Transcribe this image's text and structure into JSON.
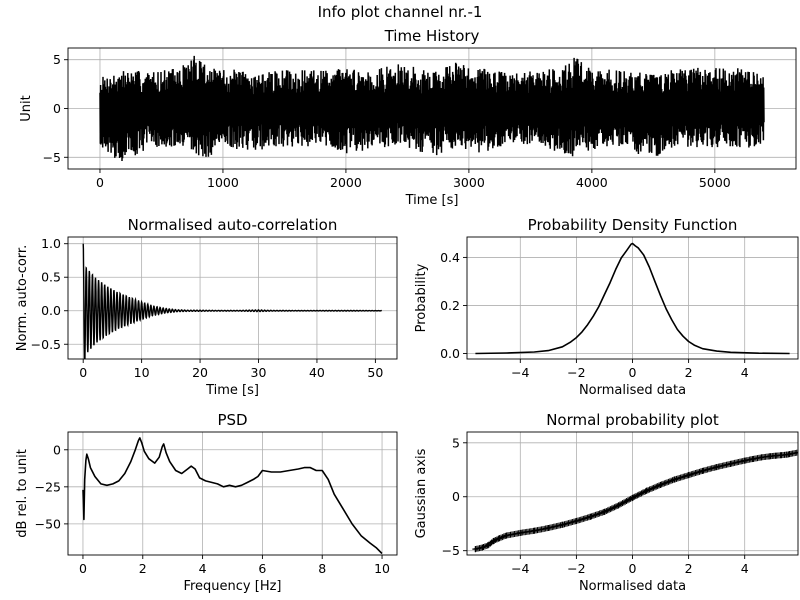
{
  "figure": {
    "suptitle": "Info plot channel nr.-1"
  },
  "chart_data": [
    {
      "id": "time-history",
      "type": "line",
      "title": "Time History",
      "xlabel": "Time [s]",
      "ylabel": "Unit",
      "xlim": [
        -260,
        5660
      ],
      "ylim": [
        -6.2,
        6.2
      ],
      "xticks": [
        0,
        1000,
        2000,
        3000,
        4000,
        5000
      ],
      "yticks": [
        -5,
        0,
        5
      ],
      "grid": true,
      "color": "#000000",
      "signal": {
        "x_start": 0,
        "x_end": 5400,
        "envelope_max": [
          [
            0,
            3.2
          ],
          [
            200,
            4.0
          ],
          [
            420,
            3.8
          ],
          [
            650,
            4.2
          ],
          [
            800,
            5.9
          ],
          [
            900,
            4.1
          ],
          [
            1100,
            4.0
          ],
          [
            1300,
            3.6
          ],
          [
            1500,
            4.0
          ],
          [
            1700,
            3.9
          ],
          [
            1950,
            4.2
          ],
          [
            2200,
            4.0
          ],
          [
            2450,
            4.6
          ],
          [
            2700,
            3.8
          ],
          [
            2900,
            4.8
          ],
          [
            3100,
            4.2
          ],
          [
            3350,
            3.6
          ],
          [
            3600,
            4.0
          ],
          [
            3800,
            4.6
          ],
          [
            3850,
            5.6
          ],
          [
            4000,
            4.1
          ],
          [
            4300,
            3.9
          ],
          [
            4500,
            3.8
          ],
          [
            4800,
            4.1
          ],
          [
            5100,
            4.4
          ],
          [
            5300,
            3.8
          ],
          [
            5400,
            3.4
          ]
        ],
        "envelope_min": [
          [
            0,
            -3.8
          ],
          [
            170,
            -5.6
          ],
          [
            420,
            -3.9
          ],
          [
            700,
            -4.3
          ],
          [
            850,
            -5.2
          ],
          [
            1050,
            -4.1
          ],
          [
            1300,
            -4.3
          ],
          [
            1500,
            -4.0
          ],
          [
            1800,
            -3.9
          ],
          [
            2000,
            -4.6
          ],
          [
            2250,
            -4.1
          ],
          [
            2450,
            -3.7
          ],
          [
            2700,
            -5.0
          ],
          [
            2900,
            -4.0
          ],
          [
            3100,
            -4.6
          ],
          [
            3350,
            -3.8
          ],
          [
            3550,
            -4.1
          ],
          [
            3800,
            -5.1
          ],
          [
            4000,
            -4.2
          ],
          [
            4250,
            -3.8
          ],
          [
            4450,
            -5.3
          ],
          [
            4700,
            -4.0
          ],
          [
            5000,
            -4.1
          ],
          [
            5300,
            -4.0
          ],
          [
            5400,
            -3.5
          ]
        ]
      }
    },
    {
      "id": "autocorrelation",
      "type": "line",
      "title": "Normalised auto-correlation",
      "xlabel": "Time [s]",
      "ylabel": "Norm. auto-corr.",
      "xlim": [
        -2.6,
        53.7
      ],
      "ylim": [
        -0.72,
        1.1
      ],
      "xticks": [
        0,
        10,
        20,
        30,
        40,
        50
      ],
      "yticks": [
        -0.5,
        0.0,
        0.5,
        1.0
      ],
      "ytick_format": 1,
      "grid": true,
      "color": "#000000",
      "envelope": [
        [
          0,
          1.0
        ],
        [
          0.5,
          0.65
        ],
        [
          1,
          0.6
        ],
        [
          2,
          0.5
        ],
        [
          4,
          0.37
        ],
        [
          6,
          0.27
        ],
        [
          8,
          0.2
        ],
        [
          10,
          0.13
        ],
        [
          12,
          0.07
        ],
        [
          14,
          0.035
        ],
        [
          16,
          0.015
        ],
        [
          18,
          0.008
        ],
        [
          20,
          0.008
        ],
        [
          22,
          0.006
        ],
        [
          26,
          0.004
        ],
        [
          30,
          0.012
        ],
        [
          32,
          0.006
        ],
        [
          36,
          0.003
        ],
        [
          40,
          0.003
        ],
        [
          45,
          0.004
        ],
        [
          51,
          0.002
        ]
      ],
      "x_end": 51.1
    },
    {
      "id": "pdf",
      "type": "line",
      "title": "Probability Density Function",
      "xlabel": "Normalised data",
      "ylabel": "Probability",
      "xlim": [
        -5.9,
        5.9
      ],
      "ylim": [
        -0.023,
        0.485
      ],
      "xticks": [
        -4,
        -2,
        0,
        2,
        4
      ],
      "yticks": [
        0.0,
        0.2,
        0.4
      ],
      "ytick_format": 1,
      "grid": true,
      "color": "#000000",
      "x": [
        -5.6,
        -4.5,
        -3.5,
        -3.0,
        -2.5,
        -2.2,
        -2.0,
        -1.8,
        -1.6,
        -1.4,
        -1.2,
        -1.0,
        -0.8,
        -0.6,
        -0.4,
        -0.2,
        -0.05,
        0.0,
        0.1,
        0.2,
        0.4,
        0.6,
        0.8,
        1.0,
        1.2,
        1.4,
        1.6,
        1.8,
        2.0,
        2.2,
        2.5,
        3.0,
        3.5,
        4.5,
        5.6
      ],
      "y": [
        0.0,
        0.002,
        0.006,
        0.012,
        0.028,
        0.048,
        0.066,
        0.09,
        0.12,
        0.155,
        0.195,
        0.245,
        0.295,
        0.35,
        0.398,
        0.43,
        0.455,
        0.458,
        0.448,
        0.44,
        0.41,
        0.36,
        0.3,
        0.24,
        0.185,
        0.14,
        0.1,
        0.072,
        0.05,
        0.035,
        0.02,
        0.01,
        0.005,
        0.001,
        0.0
      ]
    },
    {
      "id": "psd",
      "type": "line",
      "title": "PSD",
      "xlabel": "Frequency [Hz]",
      "ylabel": "dB rel. to unit",
      "xlim": [
        -0.5,
        10.5
      ],
      "ylim": [
        -71,
        12
      ],
      "xticks": [
        0,
        2,
        4,
        6,
        8,
        10
      ],
      "yticks": [
        -50,
        -25,
        0
      ],
      "grid": true,
      "color": "#000000",
      "x": [
        0.0,
        0.03,
        0.06,
        0.1,
        0.13,
        0.18,
        0.25,
        0.4,
        0.6,
        0.8,
        1.0,
        1.2,
        1.4,
        1.6,
        1.75,
        1.85,
        1.9,
        1.96,
        2.05,
        2.2,
        2.4,
        2.55,
        2.65,
        2.7,
        2.78,
        2.9,
        3.1,
        3.3,
        3.5,
        3.62,
        3.75,
        3.9,
        4.1,
        4.3,
        4.5,
        4.7,
        4.9,
        5.1,
        5.3,
        5.5,
        5.7,
        5.85,
        6.0,
        6.3,
        6.6,
        6.9,
        7.2,
        7.4,
        7.6,
        7.8,
        8.0,
        8.2,
        8.4,
        8.7,
        9.0,
        9.3,
        9.6,
        9.8,
        10.0
      ],
      "y": [
        -27,
        -47,
        -20,
        -7,
        -3,
        -6,
        -12,
        -18,
        -23,
        -24,
        -23,
        -21,
        -16,
        -8,
        0,
        6,
        8,
        5,
        -1,
        -6,
        -9,
        -5,
        2,
        4,
        -2,
        -8,
        -14,
        -16,
        -13,
        -11,
        -13,
        -19,
        -21,
        -22,
        -23,
        -25,
        -24,
        -25,
        -24,
        -22,
        -20,
        -18,
        -14,
        -15,
        -15,
        -14,
        -13,
        -12,
        -12,
        -14,
        -14,
        -20,
        -30,
        -40,
        -50,
        -58,
        -63,
        -66,
        -70
      ]
    },
    {
      "id": "normal-probability",
      "type": "scatter",
      "title": "Normal probability plot",
      "xlabel": "Normalised data",
      "ylabel": "Gaussian axis",
      "xlim": [
        -5.9,
        5.9
      ],
      "ylim": [
        -5.4,
        6.0
      ],
      "xticks": [
        -4,
        -2,
        0,
        2,
        4
      ],
      "yticks": [
        -5,
        0,
        5
      ],
      "grid": true,
      "marker": "+",
      "color": "#000000",
      "x": [
        -5.6,
        -5.35,
        -5.15,
        -4.95,
        -4.75,
        -4.5,
        -4.0,
        -3.5,
        -3.0,
        -2.5,
        -2.0,
        -1.5,
        -1.0,
        -0.5,
        0.0,
        0.5,
        1.0,
        1.5,
        2.0,
        2.5,
        3.0,
        3.5,
        4.0,
        4.3,
        4.6,
        4.9,
        5.1,
        5.3,
        5.5,
        5.6,
        5.9
      ],
      "y": [
        -4.85,
        -4.7,
        -4.5,
        -4.1,
        -3.85,
        -3.6,
        -3.35,
        -3.15,
        -2.9,
        -2.6,
        -2.25,
        -1.85,
        -1.4,
        -0.8,
        -0.1,
        0.55,
        1.1,
        1.6,
        2.0,
        2.4,
        2.75,
        3.05,
        3.35,
        3.5,
        3.65,
        3.75,
        3.8,
        3.85,
        3.9,
        3.95,
        4.1
      ]
    }
  ]
}
